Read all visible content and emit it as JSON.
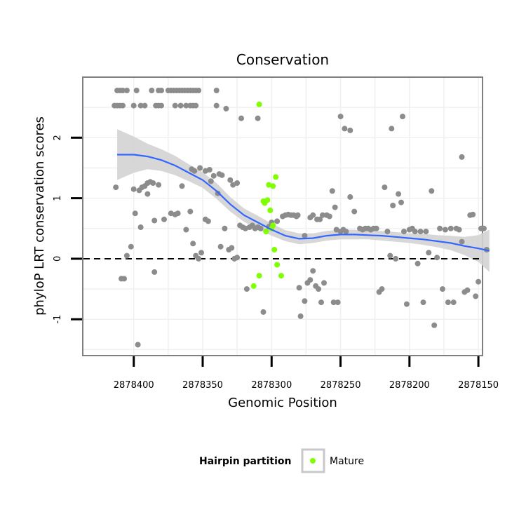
{
  "chart_data": {
    "type": "scatter",
    "title": "Conservation",
    "xlabel": "Genomic Position",
    "ylabel": "phyloP LRT conservation scores",
    "x_reversed": true,
    "xlim": [
      2878437,
      2878147
    ],
    "ylim": [
      -1.6,
      3.0
    ],
    "x_ticks": [
      2878400,
      2878350,
      2878300,
      2878250,
      2878200,
      2878150
    ],
    "x_tick_labels": [
      "2878400",
      "2878350",
      "2878300",
      "2878250",
      "2878200",
      "2878150"
    ],
    "y_ticks": [
      -1,
      0,
      1,
      2
    ],
    "y_tick_labels": [
      "-1",
      "0",
      "1",
      "2"
    ],
    "reference_line": {
      "y": 0,
      "style": "dashed"
    },
    "legend": {
      "title": "Hairpin partition",
      "entries": [
        {
          "label": "Mature",
          "color": "#7FFF00"
        }
      ],
      "position": "bottom"
    },
    "colors": {
      "other": "#8C8C8C",
      "mature": "#7FFF00",
      "smooth": "#3366FF",
      "band": "#D3D3D3"
    },
    "series": [
      {
        "name": "Other",
        "points": [
          [
            2878412,
            2.78
          ],
          [
            2878410,
            2.78
          ],
          [
            2878408,
            2.78
          ],
          [
            2878405,
            2.78
          ],
          [
            2878398,
            2.78
          ],
          [
            2878387,
            2.78
          ],
          [
            2878382,
            2.78
          ],
          [
            2878380,
            2.78
          ],
          [
            2878375,
            2.78
          ],
          [
            2878373,
            2.78
          ],
          [
            2878371,
            2.78
          ],
          [
            2878369,
            2.78
          ],
          [
            2878367,
            2.78
          ],
          [
            2878365,
            2.78
          ],
          [
            2878363,
            2.78
          ],
          [
            2878361,
            2.78
          ],
          [
            2878359,
            2.78
          ],
          [
            2878357,
            2.78
          ],
          [
            2878355,
            2.78
          ],
          [
            2878353,
            2.78
          ],
          [
            2878340,
            2.78
          ],
          [
            2878414,
            2.53
          ],
          [
            2878412,
            2.53
          ],
          [
            2878410,
            2.53
          ],
          [
            2878408,
            2.53
          ],
          [
            2878400,
            2.53
          ],
          [
            2878395,
            2.53
          ],
          [
            2878392,
            2.53
          ],
          [
            2878384,
            2.53
          ],
          [
            2878382,
            2.53
          ],
          [
            2878380,
            2.53
          ],
          [
            2878370,
            2.53
          ],
          [
            2878366,
            2.53
          ],
          [
            2878362,
            2.53
          ],
          [
            2878359,
            2.53
          ],
          [
            2878357,
            2.53
          ],
          [
            2878355,
            2.53
          ],
          [
            2878340,
            2.53
          ],
          [
            2878333,
            2.48
          ],
          [
            2878322,
            2.32
          ],
          [
            2878310,
            2.32
          ],
          [
            2878250,
            2.35
          ],
          [
            2878247,
            2.15
          ],
          [
            2878243,
            2.12
          ],
          [
            2878213,
            2.15
          ],
          [
            2878205,
            2.35
          ],
          [
            2878162,
            1.68
          ],
          [
            2878413,
            1.18
          ],
          [
            2878400,
            1.15
          ],
          [
            2878396,
            1.13
          ],
          [
            2878394,
            1.18
          ],
          [
            2878392,
            1.2
          ],
          [
            2878390,
            1.25
          ],
          [
            2878388,
            1.27
          ],
          [
            2878386,
            1.25
          ],
          [
            2878382,
            1.22
          ],
          [
            2878370,
            0.73
          ],
          [
            2878368,
            0.75
          ],
          [
            2878365,
            1.2
          ],
          [
            2878358,
            1.48
          ],
          [
            2878356,
            1.45
          ],
          [
            2878352,
            1.5
          ],
          [
            2878348,
            1.45
          ],
          [
            2878345,
            1.47
          ],
          [
            2878342,
            1.37
          ],
          [
            2878338,
            1.4
          ],
          [
            2878336,
            1.38
          ],
          [
            2878330,
            1.3
          ],
          [
            2878328,
            1.22
          ],
          [
            2878325,
            1.25
          ],
          [
            2878409,
            -0.33
          ],
          [
            2878407,
            -0.33
          ],
          [
            2878405,
            0.05
          ],
          [
            2878402,
            0.2
          ],
          [
            2878399,
            0.75
          ],
          [
            2878397,
            -1.42
          ],
          [
            2878395,
            0.52
          ],
          [
            2878390,
            1.07
          ],
          [
            2878385,
            0.63
          ],
          [
            2878385,
            -0.22
          ],
          [
            2878378,
            0.65
          ],
          [
            2878373,
            0.75
          ],
          [
            2878362,
            0.48
          ],
          [
            2878359,
            0.78
          ],
          [
            2878357,
            0.25
          ],
          [
            2878355,
            0.05
          ],
          [
            2878353,
            0.0
          ],
          [
            2878351,
            0.1
          ],
          [
            2878348,
            0.65
          ],
          [
            2878346,
            0.62
          ],
          [
            2878344,
            1.28
          ],
          [
            2878339,
            1.08
          ],
          [
            2878337,
            0.2
          ],
          [
            2878334,
            0.5
          ],
          [
            2878331,
            0.15
          ],
          [
            2878329,
            0.18
          ],
          [
            2878327,
            0.0
          ],
          [
            2878325,
            0.02
          ],
          [
            2878323,
            0.55
          ],
          [
            2878321,
            0.52
          ],
          [
            2878319,
            0.5
          ],
          [
            2878318,
            -0.5
          ],
          [
            2878316,
            0.52
          ],
          [
            2878314,
            0.55
          ],
          [
            2878312,
            0.5
          ],
          [
            2878310,
            0.52
          ],
          [
            2878308,
            0.5
          ],
          [
            2878306,
            -0.88
          ],
          [
            2878304,
            0.45
          ],
          [
            2878302,
            0.53
          ],
          [
            2878300,
            0.6
          ],
          [
            2878296,
            0.62
          ],
          [
            2878292,
            0.7
          ],
          [
            2878290,
            0.72
          ],
          [
            2878288,
            0.73
          ],
          [
            2878286,
            0.72
          ],
          [
            2878284,
            0.72
          ],
          [
            2878282,
            0.7
          ],
          [
            2878281,
            0.72
          ],
          [
            2878280,
            -0.48
          ],
          [
            2878279,
            -0.95
          ],
          [
            2878276,
            -0.7
          ],
          [
            2878274,
            -0.4
          ],
          [
            2878272,
            -0.35
          ],
          [
            2878270,
            -0.2
          ],
          [
            2878268,
            -0.45
          ],
          [
            2878266,
            -0.5
          ],
          [
            2878264,
            -0.72
          ],
          [
            2878262,
            -0.4
          ],
          [
            2878260,
            0.72
          ],
          [
            2878258,
            0.7
          ],
          [
            2878256,
            1.12
          ],
          [
            2878254,
            0.85
          ],
          [
            2878252,
            -0.72
          ],
          [
            2878250,
            0.45
          ],
          [
            2878248,
            0.48
          ],
          [
            2878246,
            0.45
          ],
          [
            2878243,
            1.02
          ],
          [
            2878240,
            0.78
          ],
          [
            2878276,
            0.38
          ],
          [
            2878272,
            0.68
          ],
          [
            2878270,
            0.72
          ],
          [
            2878267,
            0.65
          ],
          [
            2878265,
            0.65
          ],
          [
            2878263,
            0.72
          ],
          [
            2878255,
            -0.72
          ],
          [
            2878253,
            0.48
          ],
          [
            2878236,
            0.5
          ],
          [
            2878234,
            0.48
          ],
          [
            2878232,
            0.5
          ],
          [
            2878230,
            0.5
          ],
          [
            2878228,
            0.48
          ],
          [
            2878226,
            0.5
          ],
          [
            2878224,
            0.5
          ],
          [
            2878222,
            -0.55
          ],
          [
            2878220,
            -0.5
          ],
          [
            2878218,
            1.18
          ],
          [
            2878216,
            0.45
          ],
          [
            2878214,
            0.05
          ],
          [
            2878212,
            0.88
          ],
          [
            2878210,
            0.0
          ],
          [
            2878208,
            1.07
          ],
          [
            2878206,
            0.93
          ],
          [
            2878204,
            0.45
          ],
          [
            2878202,
            -0.75
          ],
          [
            2878200,
            0.48
          ],
          [
            2878198,
            0.5
          ],
          [
            2878196,
            0.45
          ],
          [
            2878194,
            -0.08
          ],
          [
            2878192,
            0.45
          ],
          [
            2878190,
            -0.72
          ],
          [
            2878188,
            0.45
          ],
          [
            2878186,
            0.1
          ],
          [
            2878184,
            1.12
          ],
          [
            2878182,
            -1.1
          ],
          [
            2878180,
            0.02
          ],
          [
            2878178,
            0.5
          ],
          [
            2878176,
            -0.5
          ],
          [
            2878174,
            0.48
          ],
          [
            2878172,
            -0.72
          ],
          [
            2878170,
            0.5
          ],
          [
            2878168,
            -0.72
          ],
          [
            2878166,
            0.5
          ],
          [
            2878164,
            0.48
          ],
          [
            2878162,
            0.28
          ],
          [
            2878160,
            -0.55
          ],
          [
            2878158,
            -0.52
          ],
          [
            2878156,
            0.72
          ],
          [
            2878154,
            0.73
          ],
          [
            2878152,
            -0.62
          ],
          [
            2878150,
            -0.38
          ],
          [
            2878148,
            0.5
          ],
          [
            2878146,
            0.5
          ],
          [
            2878144,
            0.15
          ]
        ]
      },
      {
        "name": "Mature",
        "points": [
          [
            2878309,
            2.55
          ],
          [
            2878302,
            1.22
          ],
          [
            2878299,
            1.2
          ],
          [
            2878297,
            1.35
          ],
          [
            2878305,
            0.92
          ],
          [
            2878303,
            0.97
          ],
          [
            2878306,
            0.95
          ],
          [
            2878301,
            0.8
          ],
          [
            2878300,
            0.5
          ],
          [
            2878299,
            0.55
          ],
          [
            2878304,
            0.45
          ],
          [
            2878298,
            0.15
          ],
          [
            2878296,
            -0.1
          ],
          [
            2878293,
            -0.28
          ],
          [
            2878309,
            -0.28
          ],
          [
            2878313,
            -0.45
          ]
        ]
      }
    ],
    "smooth_line": {
      "x": [
        2878412,
        2878400,
        2878390,
        2878380,
        2878370,
        2878360,
        2878350,
        2878340,
        2878330,
        2878320,
        2878310,
        2878300,
        2878290,
        2878280,
        2878270,
        2878260,
        2878250,
        2878240,
        2878230,
        2878220,
        2878210,
        2878200,
        2878190,
        2878180,
        2878170,
        2878160,
        2878150,
        2878142
      ],
      "y": [
        1.72,
        1.72,
        1.69,
        1.63,
        1.54,
        1.42,
        1.3,
        1.12,
        0.9,
        0.72,
        0.6,
        0.48,
        0.38,
        0.33,
        0.34,
        0.38,
        0.4,
        0.4,
        0.39,
        0.38,
        0.36,
        0.34,
        0.32,
        0.29,
        0.26,
        0.21,
        0.17,
        0.13
      ],
      "band_lower": [
        1.3,
        1.42,
        1.48,
        1.45,
        1.38,
        1.28,
        1.17,
        0.99,
        0.78,
        0.61,
        0.49,
        0.38,
        0.29,
        0.24,
        0.26,
        0.3,
        0.32,
        0.32,
        0.32,
        0.3,
        0.28,
        0.26,
        0.23,
        0.19,
        0.14,
        0.06,
        -0.05,
        -0.22
      ],
      "band_upper": [
        2.14,
        2.02,
        1.9,
        1.81,
        1.7,
        1.56,
        1.43,
        1.25,
        1.02,
        0.83,
        0.71,
        0.58,
        0.47,
        0.42,
        0.42,
        0.46,
        0.48,
        0.48,
        0.46,
        0.46,
        0.44,
        0.42,
        0.41,
        0.39,
        0.38,
        0.36,
        0.39,
        0.48
      ]
    }
  }
}
